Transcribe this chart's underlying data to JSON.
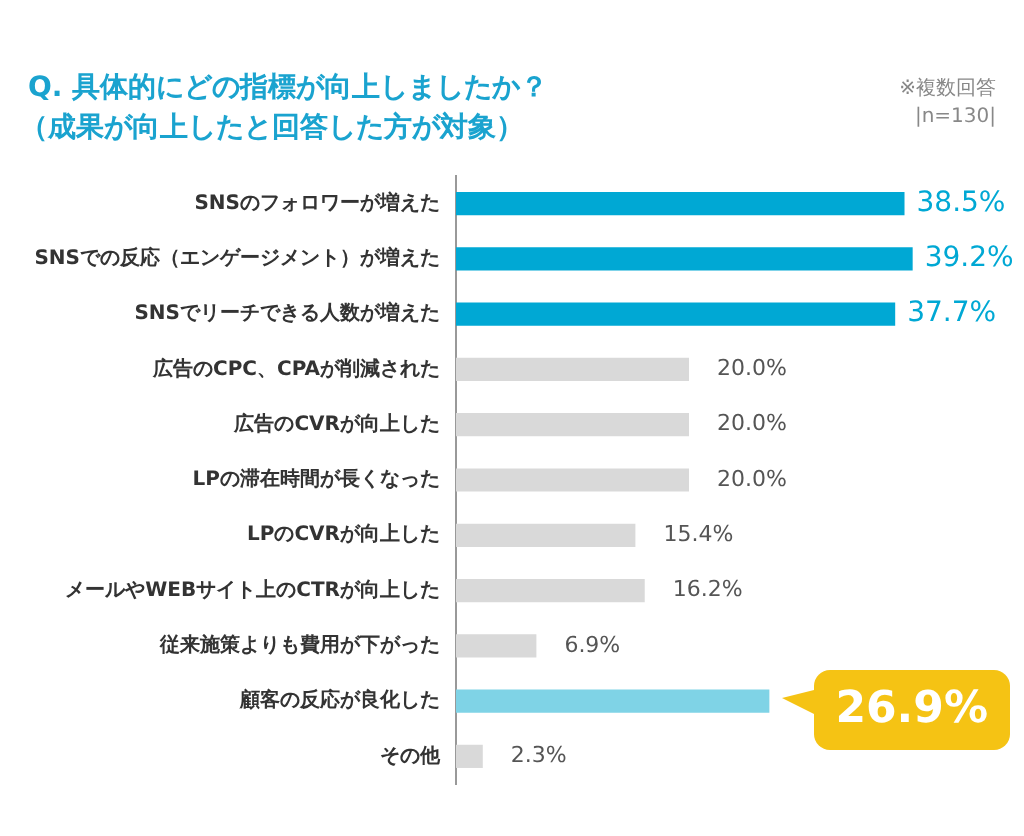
{
  "chart_data": {
    "type": "bar",
    "orientation": "horizontal",
    "title": "Q. 具体的にどの指標が向上しましたか？",
    "subtitle": "（成果が向上したと回答した方が対象）",
    "annotations": [
      "※複数回答\n|n=130|"
    ],
    "categories": [
      "SNSのフォロワーが増えた",
      "SNSでの反応（エンゲージメント）が増えた",
      "SNSでリーチできる人数が増えた",
      "広告のCPC、CPAが削減された",
      "広告のCVRが向上した",
      "LPの滞在時間が長くなった",
      "LPのCVRが向上した",
      "メールやWEBサイト上のCTRが向上した",
      "従来施策よりも費用が下がった",
      "顧客の反応が良化した",
      "その他"
    ],
    "values": [
      38.5,
      39.2,
      37.7,
      20.0,
      20.0,
      20.0,
      15.4,
      16.2,
      6.9,
      26.9,
      2.3
    ],
    "value_labels": [
      "38.5%",
      "39.2%",
      "37.7%",
      "20.0%",
      "20.0%",
      "20.0%",
      "15.4%",
      "16.2%",
      "6.9%",
      "26.9%",
      "2.3%"
    ],
    "colors": [
      "#00a8d4",
      "#00a8d4",
      "#00a8d4",
      "#d9d9d9",
      "#d9d9d9",
      "#d9d9d9",
      "#d9d9d9",
      "#d9d9d9",
      "#d9d9d9",
      "#7fd3e6",
      "#d9d9d9"
    ],
    "grid": false,
    "legend": false
  }
}
